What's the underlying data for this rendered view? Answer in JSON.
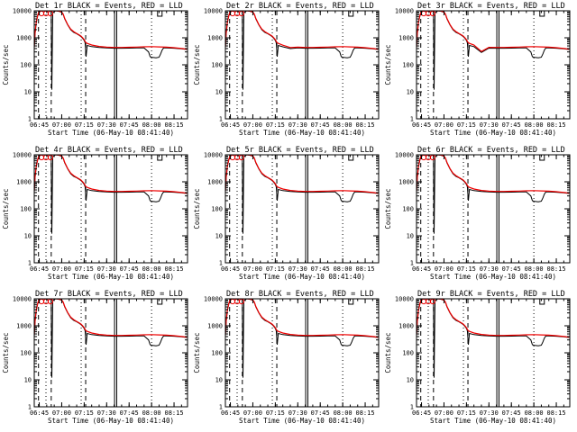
{
  "figure": {
    "ylabel": "Counts/sec",
    "xlabel": "Start Time (06-May-10 08:41:40)",
    "colors": {
      "events": "#000000",
      "lld": "#ee0000",
      "axis": "#000000"
    }
  },
  "chart_data": [
    {
      "type": "line",
      "title": "Det 1r BLACK = Events, RED = LLD",
      "detector": "1r",
      "variant": 0
    },
    {
      "type": "line",
      "title": "Det 2r BLACK = Events, RED = LLD",
      "detector": "2r",
      "variant": 1
    },
    {
      "type": "line",
      "title": "Det 3r BLACK = Events, RED = LLD",
      "detector": "3r",
      "variant": 2
    },
    {
      "type": "line",
      "title": "Det 4r BLACK = Events, RED = LLD",
      "detector": "4r",
      "variant": 0
    },
    {
      "type": "line",
      "title": "Det 5r BLACK = Events, RED = LLD",
      "detector": "5r",
      "variant": 0
    },
    {
      "type": "line",
      "title": "Det 6r BLACK = Events, RED = LLD",
      "detector": "6r",
      "variant": 0
    },
    {
      "type": "line",
      "title": "Det 7r BLACK = Events, RED = LLD",
      "detector": "7r",
      "variant": 0
    },
    {
      "type": "line",
      "title": "Det 8r BLACK = Events, RED = LLD",
      "detector": "8r",
      "variant": 0
    },
    {
      "type": "line",
      "title": "Det 9r BLACK = Events, RED = LLD",
      "detector": "9r",
      "variant": 0
    }
  ],
  "shared": {
    "x_tick_labels": [
      "06:45",
      "07:00",
      "07:15",
      "07:30",
      "07:45",
      "08:00",
      "08:15"
    ],
    "x_tick_minutes": [
      405,
      420,
      435,
      450,
      465,
      480,
      495
    ],
    "x_range_minutes": [
      401.67,
      504
    ],
    "y_scale": "log",
    "ylim": [
      1,
      10000
    ],
    "y_tick_labels": [
      "1",
      "10",
      "100",
      "1000",
      "10000"
    ],
    "y_tick_values": [
      1,
      10,
      100,
      1000,
      10000
    ],
    "dashed_lines_minutes": [
      404.5,
      413,
      436
    ],
    "dotted_lines_minutes": [
      409.5,
      433,
      480
    ],
    "solid_lines_minutes": [
      456
    ],
    "lld_series": {
      "x": [
        401.7,
        402.2,
        403,
        404,
        405,
        406,
        408,
        410,
        412,
        413,
        414.5,
        416,
        418,
        420,
        421,
        422,
        424,
        426,
        428,
        430,
        431,
        432,
        433,
        434,
        435,
        436,
        437,
        440,
        445,
        450,
        455,
        460,
        465,
        470,
        475,
        480,
        485,
        490,
        495,
        500,
        503.5
      ],
      "y": [
        450,
        1500,
        3800,
        7000,
        9500,
        10000,
        10000,
        10000,
        10000,
        10000,
        10000,
        10000,
        9800,
        9000,
        7500,
        5200,
        3100,
        2100,
        1700,
        1450,
        1350,
        1250,
        1150,
        1000,
        850,
        680,
        620,
        540,
        480,
        450,
        440,
        440,
        445,
        455,
        465,
        470,
        460,
        450,
        430,
        400,
        380
      ]
    },
    "events_series": {
      "x": [
        401.7,
        402.2,
        403,
        404,
        405,
        406,
        408,
        410,
        412,
        413,
        413.4,
        414,
        416,
        418,
        420,
        421,
        422,
        424,
        426,
        428,
        430,
        431,
        432,
        433,
        434,
        435,
        435.6,
        436.3,
        437,
        440,
        445,
        450,
        455,
        460,
        465,
        470,
        475,
        478,
        479,
        480,
        483,
        485,
        486,
        487,
        488,
        490,
        495,
        500,
        503.5
      ],
      "y": [
        420,
        1400,
        3600,
        6800,
        9300,
        10000,
        10000,
        10000,
        10000,
        9000,
        12,
        8500,
        10000,
        9600,
        8800,
        7300,
        5000,
        3000,
        2000,
        1600,
        1400,
        1300,
        1200,
        1100,
        950,
        800,
        650,
        200,
        520,
        470,
        440,
        420,
        410,
        410,
        415,
        420,
        420,
        300,
        200,
        190,
        180,
        190,
        250,
        350,
        420,
        420,
        410,
        390,
        370
      ]
    },
    "markers": {
      "type": "open-circle",
      "x_minutes": [
        406.5,
        409.5,
        412.5
      ],
      "y": [
        10000,
        10000,
        10000
      ]
    },
    "flag_box_minutes": [
      484,
      487
    ]
  }
}
